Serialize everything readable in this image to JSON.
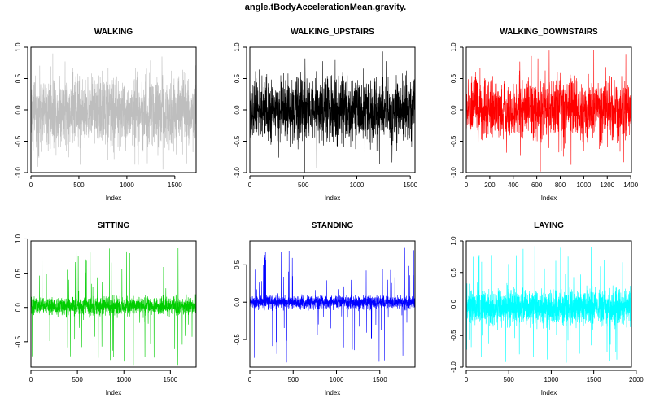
{
  "title": "angle.tBodyAccelerationMean.gravity.",
  "chart_data": [
    {
      "type": "line",
      "title": "WALKING",
      "color": "#bebebe",
      "xlabel": "Index",
      "ylabel": "",
      "n": 1722,
      "xlim": [
        0,
        1722
      ],
      "ylim": [
        -1.0,
        1.0
      ],
      "xticks": [
        0,
        500,
        1000,
        1500
      ],
      "yticks": [
        -1.0,
        -0.5,
        0.0,
        0.5,
        1.0
      ],
      "ytick_labels": [
        "-1.0",
        "-0.5",
        "0.0",
        "0.5",
        "1.0"
      ],
      "profile": {
        "center": -0.02,
        "spread": 0.5,
        "max": 0.9,
        "min": -0.95
      }
    },
    {
      "type": "line",
      "title": "WALKING_UPSTAIRS",
      "color": "#000000",
      "xlabel": "Index",
      "ylabel": "",
      "n": 1544,
      "xlim": [
        0,
        1544
      ],
      "ylim": [
        -1.0,
        1.0
      ],
      "xticks": [
        0,
        500,
        1000,
        1500
      ],
      "yticks": [
        -1.0,
        -0.5,
        0.0,
        0.5,
        1.0
      ],
      "ytick_labels": [
        "-1.0",
        "-0.5",
        "0.0",
        "0.5",
        "1.0"
      ],
      "profile": {
        "center": 0.0,
        "spread": 0.45,
        "max": 0.95,
        "min": -1.0
      }
    },
    {
      "type": "line",
      "title": "WALKING_DOWNSTAIRS",
      "color": "#ff0000",
      "xlabel": "Index",
      "ylabel": "",
      "n": 1406,
      "xlim": [
        0,
        1406
      ],
      "ylim": [
        -1.0,
        1.0
      ],
      "xticks": [
        0,
        200,
        400,
        600,
        800,
        1000,
        1200,
        1400
      ],
      "yticks": [
        -1.0,
        -0.5,
        0.0,
        0.5,
        1.0
      ],
      "ytick_labels": [
        "-1.0",
        "-0.5",
        "0.0",
        "0.5",
        "1.0"
      ],
      "profile": {
        "center": 0.0,
        "spread": 0.45,
        "max": 0.95,
        "min": -1.0
      }
    },
    {
      "type": "line",
      "title": "SITTING",
      "color": "#00cd00",
      "xlabel": "Index",
      "ylabel": "",
      "n": 1777,
      "xlim": [
        0,
        1777
      ],
      "ylim": [
        -0.87,
        0.97
      ],
      "xticks": [
        0,
        500,
        1000,
        1500
      ],
      "yticks": [
        -0.5,
        0.0,
        0.5,
        1.0
      ],
      "ytick_labels": [
        "-0.5",
        "0.0",
        "0.5",
        "1.0"
      ],
      "profile": {
        "center": 0.02,
        "spread": 0.12,
        "max": 0.95,
        "min": -0.85
      }
    },
    {
      "type": "line",
      "title": "STANDING",
      "color": "#0000ff",
      "xlabel": "Index",
      "ylabel": "",
      "n": 1906,
      "xlim": [
        0,
        1906
      ],
      "ylim": [
        -0.87,
        0.82
      ],
      "xticks": [
        0,
        500,
        1000,
        1500
      ],
      "yticks": [
        -0.5,
        0.0,
        0.5
      ],
      "ytick_labels": [
        "-0.5",
        "0.0",
        "0.5"
      ],
      "profile": {
        "center": 0.0,
        "spread": 0.08,
        "max": 0.8,
        "min": -0.85
      }
    },
    {
      "type": "line",
      "title": "LAYING",
      "color": "#00ffff",
      "xlabel": "Index",
      "ylabel": "",
      "n": 1944,
      "xlim": [
        0,
        1944
      ],
      "ylim": [
        -1.0,
        1.0
      ],
      "xticks": [
        0,
        500,
        1000,
        1500,
        2000
      ],
      "yticks": [
        -1.0,
        -0.5,
        0.0,
        0.5,
        1.0
      ],
      "ytick_labels": [
        "-1.0",
        "-0.5",
        "0.0",
        "0.5",
        "1.0"
      ],
      "profile": {
        "center": -0.05,
        "spread": 0.25,
        "max": 0.95,
        "min": -1.0
      }
    }
  ]
}
